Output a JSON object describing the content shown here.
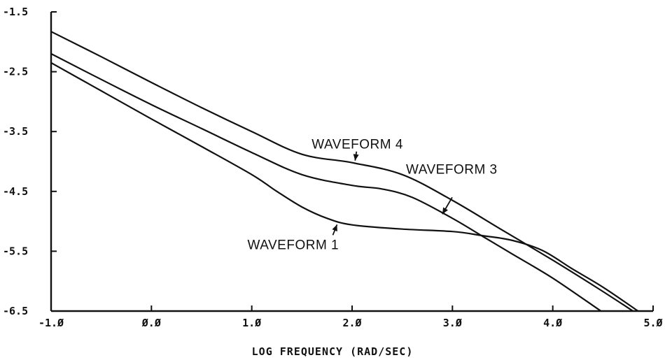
{
  "chart_data": {
    "type": "line",
    "title": "",
    "xlabel": "LOG FREQUENCY (RAD/SEC)",
    "ylabel": "",
    "xlim": [
      -1.0,
      5.0
    ],
    "ylim": [
      -6.5,
      -1.5
    ],
    "x_ticks": [
      -1.0,
      0.0,
      1.0,
      2.0,
      3.0,
      4.0,
      5.0
    ],
    "x_tick_labels": [
      "-1.Ø",
      "Ø.Ø",
      "1.Ø",
      "2.Ø",
      "3.Ø",
      "4.Ø",
      "5.Ø"
    ],
    "y_ticks": [
      -1.5,
      -2.5,
      -3.5,
      -4.5,
      -5.5,
      -6.5
    ],
    "y_tick_labels": [
      "-1.5",
      "-2.5",
      "-3.5",
      "-4.5",
      "-5.5",
      "-6.5"
    ],
    "grid": false,
    "series": [
      {
        "name": "WAVEFORM 1",
        "x": [
          -1.0,
          -0.5,
          0.0,
          0.5,
          1.0,
          1.25,
          1.5,
          1.75,
          2.0,
          2.5,
          3.0,
          3.3,
          3.6,
          3.9,
          4.2,
          4.5,
          4.85
        ],
        "y": [
          -2.35,
          -2.82,
          -3.29,
          -3.75,
          -4.22,
          -4.5,
          -4.76,
          -4.95,
          -5.06,
          -5.13,
          -5.17,
          -5.24,
          -5.32,
          -5.49,
          -5.8,
          -6.1,
          -6.5
        ]
      },
      {
        "name": "WAVEFORM 3",
        "x": [
          -1.0,
          -0.5,
          0.0,
          0.5,
          1.0,
          1.5,
          2.0,
          2.3,
          2.6,
          3.0,
          3.3,
          3.6,
          4.0,
          4.48
        ],
        "y": [
          -2.2,
          -2.63,
          -3.05,
          -3.45,
          -3.85,
          -4.22,
          -4.4,
          -4.46,
          -4.6,
          -4.95,
          -5.25,
          -5.55,
          -5.95,
          -6.5
        ]
      },
      {
        "name": "WAVEFORM 4",
        "x": [
          -1.0,
          -0.5,
          0.0,
          0.5,
          1.0,
          1.5,
          2.0,
          2.5,
          3.0,
          3.5,
          4.0,
          4.45,
          4.8
        ],
        "y": [
          -1.83,
          -2.25,
          -2.68,
          -3.1,
          -3.5,
          -3.88,
          -4.02,
          -4.22,
          -4.65,
          -5.15,
          -5.65,
          -6.12,
          -6.5
        ]
      }
    ],
    "annotations": [
      {
        "text": "WAVEFORM 4",
        "x": 2.05,
        "y": -3.93,
        "target_x": 2.03,
        "target_y": -4.02,
        "series": "WAVEFORM 4"
      },
      {
        "text": "WAVEFORM 3",
        "x": 2.9,
        "y": -4.88,
        "target_x": 2.9,
        "target_y": -4.88,
        "series": "WAVEFORM 3"
      },
      {
        "text": "WAVEFORM 1",
        "x": 1.82,
        "y": -5.22,
        "target_x": 1.85,
        "target_y": -5.02,
        "series": "WAVEFORM 1"
      }
    ]
  }
}
